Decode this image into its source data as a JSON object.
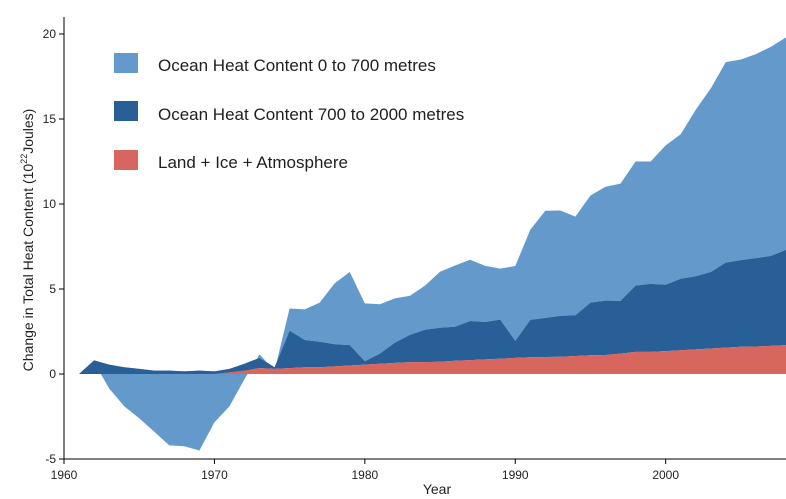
{
  "chart_data": {
    "type": "area",
    "title": "",
    "xlabel": "Year",
    "ylabel": "Change in Total Heat Content (10",
    "ylabel_superscript": "22",
    "ylabel_unit": "Joules)",
    "xlim": [
      1960,
      2008
    ],
    "ylim": [
      -5,
      21
    ],
    "xticks": [
      1960,
      1970,
      1980,
      1990,
      2000
    ],
    "yticks": [
      -5,
      0,
      5,
      10,
      15,
      20
    ],
    "grid": false,
    "legend_position": "top-left",
    "stacking": "cumulative",
    "x": [
      1961,
      1962,
      1963,
      1964,
      1965,
      1966,
      1967,
      1968,
      1969,
      1970,
      1971,
      1972,
      1973,
      1974,
      1975,
      1976,
      1977,
      1978,
      1979,
      1980,
      1981,
      1982,
      1983,
      1984,
      1985,
      1986,
      1987,
      1988,
      1989,
      1990,
      1991,
      1992,
      1993,
      1994,
      1995,
      1996,
      1997,
      1998,
      1999,
      2000,
      2001,
      2002,
      2003,
      2004,
      2005,
      2006,
      2007,
      2008
    ],
    "series": [
      {
        "name": "Land + Ice + Atmosphere",
        "color": "#d6665e",
        "values": [
          0,
          0,
          0,
          0,
          0,
          0,
          0,
          0,
          0,
          0,
          0.1,
          0.2,
          0.35,
          0.3,
          0.35,
          0.4,
          0.4,
          0.45,
          0.5,
          0.55,
          0.6,
          0.65,
          0.7,
          0.7,
          0.72,
          0.78,
          0.82,
          0.86,
          0.9,
          0.95,
          0.98,
          1.0,
          1.02,
          1.06,
          1.1,
          1.12,
          1.2,
          1.3,
          1.3,
          1.35,
          1.4,
          1.45,
          1.5,
          1.55,
          1.6,
          1.62,
          1.65,
          1.7
        ]
      },
      {
        "name": "Ocean Heat Content 700 to 2000 metres",
        "color": "#285f96",
        "values": [
          0,
          0.8,
          0.55,
          0.4,
          0.3,
          0.2,
          0.2,
          0.15,
          0.2,
          0.15,
          0.2,
          0.4,
          0.6,
          0.1,
          2.2,
          1.6,
          1.5,
          1.3,
          1.2,
          0.2,
          0.6,
          1.2,
          1.6,
          1.9,
          2.0,
          2.0,
          2.3,
          2.2,
          2.3,
          1.0,
          2.2,
          2.3,
          2.4,
          2.4,
          3.1,
          3.2,
          3.1,
          3.9,
          4.0,
          3.9,
          4.2,
          4.3,
          4.5,
          5.0,
          5.1,
          5.2,
          5.3,
          5.6
        ]
      },
      {
        "name": "Ocean Heat Content 0 to 700 metres",
        "color": "#6399cb",
        "values": [
          0,
          -0.1,
          -1.4,
          -2.3,
          -2.9,
          -3.6,
          -4.4,
          -4.4,
          -4.7,
          -3.0,
          -2.2,
          -0.9,
          0.2,
          -0.2,
          1.3,
          1.8,
          2.3,
          3.6,
          4.3,
          3.4,
          2.9,
          2.6,
          2.3,
          2.6,
          3.3,
          3.6,
          3.6,
          3.3,
          3.0,
          4.4,
          5.3,
          6.3,
          6.2,
          5.8,
          6.3,
          6.7,
          6.9,
          7.3,
          7.2,
          8.2,
          8.5,
          9.8,
          10.8,
          11.8,
          11.8,
          12.0,
          12.3,
          12.5
        ]
      }
    ]
  },
  "legend": [
    {
      "label": "Ocean Heat Content 0 to 700 metres",
      "color": "#6399cb"
    },
    {
      "label": "Ocean Heat Content 700 to 2000 metres",
      "color": "#285f96"
    },
    {
      "label": "Land + Ice + Atmosphere",
      "color": "#d6665e"
    }
  ],
  "axis": {
    "x_title": "Year",
    "y_title_prefix": "Change in Total Heat Content (10",
    "y_title_exp": "22",
    "y_title_suffix": "Joules)"
  }
}
